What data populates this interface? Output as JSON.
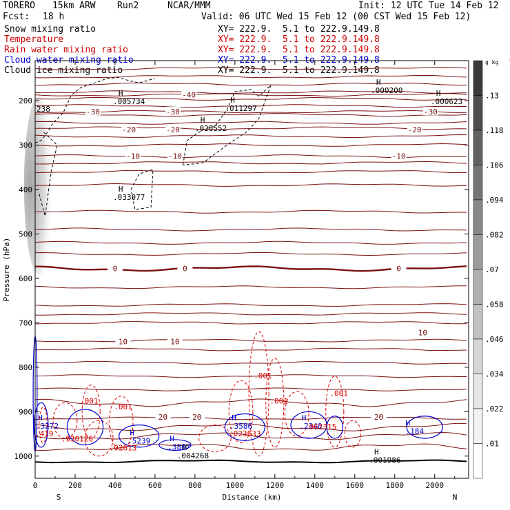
{
  "header": {
    "model": "TORERO",
    "resolution": "15km ARW",
    "run": "Run2",
    "org": "NCAR/MMM",
    "init": "Init: 12 UTC Tue 14 Feb 12",
    "fcst_label": "Fcst:",
    "fcst_value": "18 h",
    "valid": "Valid: 06 UTC Wed 15 Feb 12 (00 CST Wed 15 Feb 12)"
  },
  "legend": [
    {
      "name": "Snow mixing ratio",
      "color": "#000000",
      "xy": "XY= 222.9.  5.1 to 222.9.149.8"
    },
    {
      "name": "Temperature",
      "color": "#cc0000",
      "xy": "XY= 222.9.  5.1 to 222.9.149.8"
    },
    {
      "name": "Rain water mixing ratio",
      "color": "#cc0000",
      "xy": "XY= 222.9.  5.1 to 222.9.149.8"
    },
    {
      "name": "Cloud water mixing ratio",
      "color": "#0000cc",
      "xy": "XY= 222.9.  5.1 to 222.9.149.8"
    },
    {
      "name": "Cloud ice mixing ratio",
      "color": "#000000",
      "xy": "XY= 222.9.  5.1 to 222.9.149.8"
    }
  ],
  "chart_data": {
    "type": "cross-section contour",
    "xlabel": "Distance (km)",
    "ylabel": "Pressure (hPa)",
    "xlim": [
      0,
      2170
    ],
    "ylim": [
      1050,
      110
    ],
    "x_ticks": [
      0,
      200,
      400,
      600,
      800,
      1000,
      1200,
      1400,
      1600,
      1800,
      2000
    ],
    "y_ticks": [
      200,
      300,
      400,
      500,
      600,
      700,
      800,
      900,
      1000
    ],
    "end_labels": {
      "left": "S",
      "right": "N"
    },
    "colorbar": {
      "unit": "g kg",
      "unit_exp": "-1",
      "ticks": [
        ".13",
        ".118",
        ".106",
        ".094",
        ".082",
        ".07",
        ".058",
        ".046",
        ".034",
        ".022",
        ".01"
      ],
      "colors": [
        "#3a3a3a",
        "#4d4d4d",
        "#616161",
        "#747474",
        "#888888",
        "#9b9b9b",
        "#afafaf",
        "#c2c2c2",
        "#d6d6d6",
        "#e5e5e5",
        "#f2f2f2",
        "#ffffff"
      ]
    },
    "temperature_isotherms": [
      {
        "value": -40,
        "pressure": 187,
        "label": "-40"
      },
      {
        "value": -30,
        "pressure": 225,
        "label": "-30"
      },
      {
        "value": -20,
        "pressure": 262,
        "label": "-20"
      },
      {
        "value": -10,
        "pressure": 325,
        "label": "-10"
      },
      {
        "value": 0,
        "pressure": 578,
        "label": "0"
      },
      {
        "value": 10,
        "pressure": 740,
        "label": "10"
      },
      {
        "value": 20,
        "pressure": 915,
        "label": "20"
      }
    ],
    "temperature_labels": [
      {
        "text": "-40",
        "x": 770,
        "p": 187
      },
      {
        "text": "-30",
        "x": 290,
        "p": 225
      },
      {
        "text": "-30",
        "x": 690,
        "p": 225
      },
      {
        "text": "-30",
        "x": 1980,
        "p": 225
      },
      {
        "text": "-20",
        "x": 470,
        "p": 265
      },
      {
        "text": "-20",
        "x": 690,
        "p": 265
      },
      {
        "text": "-20",
        "x": 1900,
        "p": 265
      },
      {
        "text": "-10",
        "x": 490,
        "p": 325
      },
      {
        "text": "-10",
        "x": 700,
        "p": 325
      },
      {
        "text": "-10",
        "x": 1820,
        "p": 325
      },
      {
        "text": "0",
        "x": 400,
        "p": 578
      },
      {
        "text": "0",
        "x": 750,
        "p": 578
      },
      {
        "text": "0",
        "x": 1820,
        "p": 578
      },
      {
        "text": "10",
        "x": 440,
        "p": 742
      },
      {
        "text": "10",
        "x": 700,
        "p": 742
      },
      {
        "text": "10",
        "x": 1940,
        "p": 722
      },
      {
        "text": "20",
        "x": 640,
        "p": 912
      },
      {
        "text": "20",
        "x": 810,
        "p": 912
      },
      {
        "text": "20",
        "x": 1720,
        "p": 912
      }
    ],
    "isolines_pressure": [
      128,
      146,
      163,
      181,
      196,
      212,
      232,
      250,
      280,
      300,
      340,
      360,
      390,
      450,
      490,
      520,
      545,
      620,
      660,
      680,
      700,
      760,
      790,
      820,
      850,
      880,
      935,
      955,
      980
    ],
    "high_labels": [
      {
        "text": ".005734",
        "x": 470,
        "p": 205
      },
      {
        "text": ".011297",
        "x": 1030,
        "p": 220
      },
      {
        "text": ".028552",
        "x": 880,
        "p": 265
      },
      {
        "text": ".033077",
        "x": 470,
        "p": 420
      },
      {
        "text": ".000200",
        "x": 1760,
        "p": 180
      },
      {
        "text": ".000623",
        "x": 2060,
        "p": 205
      },
      {
        "text": ".004268",
        "x": 790,
        "p": 1002
      },
      {
        "text": ".001986",
        "x": 1750,
        "p": 1012
      }
    ],
    "cloud_water_labels": [
      {
        "text": ".3272",
        "x": 60,
        "p": 938
      },
      {
        "text": ".3586",
        "x": 1030,
        "p": 938
      },
      {
        "text": ".5239",
        "x": 520,
        "p": 972
      },
      {
        "text": ".3807",
        "x": 720,
        "p": 985
      },
      {
        "text": ".2340",
        "x": 1380,
        "p": 938
      },
      {
        "text": ".184",
        "x": 1900,
        "p": 950
      }
    ],
    "rain_labels": [
      {
        "text": ".001",
        "x": 270,
        "p": 882
      },
      {
        "text": ".001",
        "x": 440,
        "p": 895
      },
      {
        "text": ".001",
        "x": 1140,
        "p": 825
      },
      {
        "text": ".001",
        "x": 1220,
        "p": 882
      },
      {
        "text": ".001",
        "x": 1520,
        "p": 865
      },
      {
        "text": ".419",
        "x": 0,
        "p": 955
      },
      {
        "text": ".930126",
        "x": 210,
        "p": 967
      },
      {
        "text": ".02613",
        "x": 440,
        "p": 987
      },
      {
        "text": ".023633",
        "x": 1050,
        "p": 955
      },
      {
        "text": "062315",
        "x": 1440,
        "p": 940
      }
    ],
    "top_left_labels": [
      "238"
    ]
  }
}
